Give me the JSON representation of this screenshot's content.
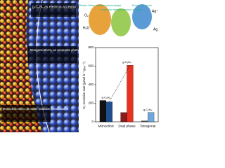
{
  "panel": {
    "labels": [
      "g-C₃N₄ as electron acceptor",
      "Tetragonal BiVO₄ as composite photocatalyst component",
      "Monoclinic BiVO₄ as water oxidation photocatalyst"
    ]
  },
  "scheme": {
    "spheres": [
      "Efficient Water oxidation photocatalyst",
      "Composite effective electron acceptor",
      "Electron acceptor"
    ],
    "species": [
      "H₂O",
      "O₂",
      "Ag⁺",
      "Ag"
    ]
  },
  "chart_data": {
    "type": "bar",
    "ylabel": "O₂ evolution rate (μmol h⁻¹ gₙₐₜ⁻¹)",
    "categories": [
      "Monoclinic",
      "Dual phase",
      "Tetragonal"
    ],
    "series": [
      {
        "colors": [
          "#111111",
          "#8b1a1a",
          "#555555"
        ],
        "values": [
          230,
          100,
          10
        ]
      },
      {
        "colors": [
          "#1f4e8c",
          "#e8321f",
          "#6fa8dc"
        ],
        "values": [
          215,
          610,
          100
        ]
      }
    ],
    "annotations": [
      "g-C₃N₄",
      "g-C₃N₄",
      "g-C₃N₄"
    ],
    "ylim": [
      0,
      800
    ],
    "yticks": [
      0,
      200,
      400,
      600,
      800
    ]
  }
}
